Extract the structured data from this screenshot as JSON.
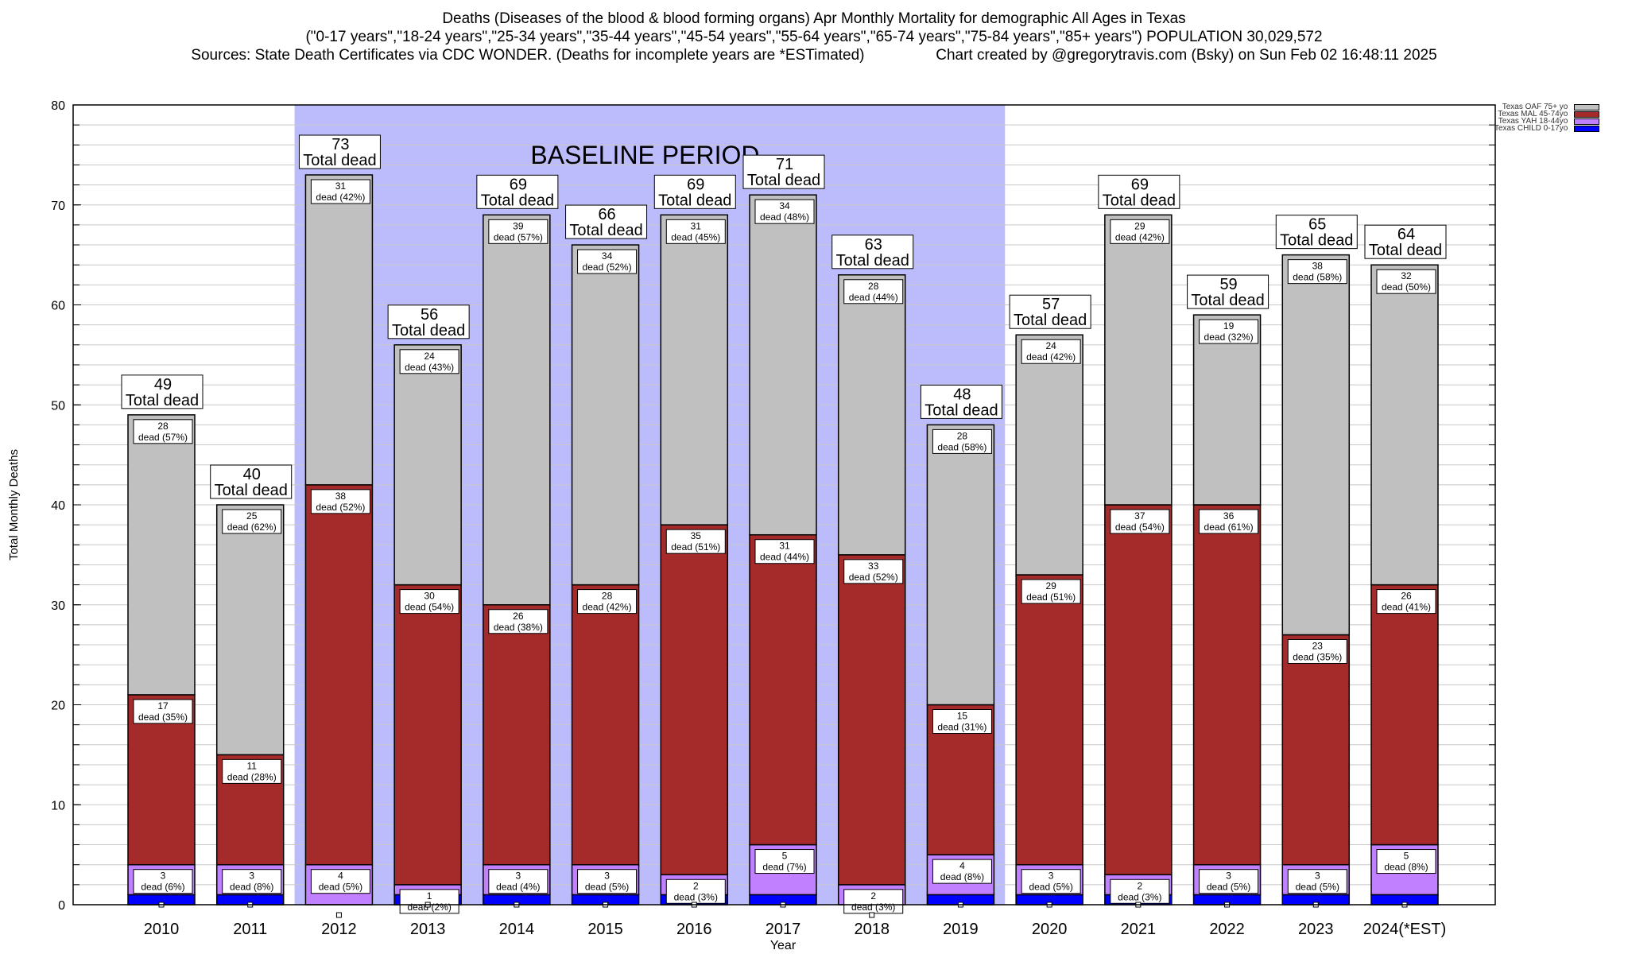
{
  "header": {
    "title_line1": "Deaths (Diseases of the blood & blood forming organs) Apr Monthly Mortality for demographic All Ages in Texas",
    "title_line2": "(\"0-17 years\",\"18-24 years\",\"25-34 years\",\"35-44 years\",\"45-54 years\",\"55-64 years\",\"65-74 years\",\"75-84 years\",\"85+ years\") POPULATION 30,029,572",
    "title_line3": "Sources: State Death Certificates via CDC WONDER. (Deaths for incomplete years are *ESTimated)                 Chart created by @gregorytravis.com (Bsky) on Sun Feb 02 16:48:11 2025"
  },
  "chart_data": {
    "type": "bar",
    "stacked": true,
    "title": "Deaths (Diseases of the blood & blood forming organs) Apr Monthly Mortality for demographic All Ages in Texas",
    "xlabel": "Year",
    "ylabel": "Total Monthly Deaths",
    "ylim": [
      0,
      80
    ],
    "yticks": [
      0,
      10,
      20,
      30,
      40,
      50,
      60,
      70,
      80
    ],
    "grid": true,
    "legend_position": "top-right",
    "baseline_period": {
      "label": "BASELINE PERIOD",
      "start": "2012",
      "end": "2019",
      "color": "#bcbcfc"
    },
    "categories": [
      "2010",
      "2011",
      "2012",
      "2013",
      "2014",
      "2015",
      "2016",
      "2017",
      "2018",
      "2019",
      "2020",
      "2021",
      "2022",
      "2023",
      "2024(*EST)"
    ],
    "totals": [
      49,
      40,
      73,
      56,
      69,
      66,
      69,
      71,
      63,
      48,
      57,
      69,
      59,
      65,
      64
    ],
    "total_label_suffix": "Total dead",
    "segment_label_word": "dead",
    "series": [
      {
        "name": "Texas CHILD 0-17yo",
        "color": "#0000ff",
        "values": [
          1,
          1,
          0,
          1,
          1,
          1,
          1,
          1,
          0,
          1,
          1,
          1,
          1,
          1,
          1
        ],
        "labels": false
      },
      {
        "name": "Texas YAH 18-44yo",
        "color": "#c080ff",
        "values": [
          3,
          3,
          4,
          1,
          3,
          3,
          2,
          5,
          2,
          4,
          3,
          2,
          3,
          3,
          5
        ],
        "percents": [
          "6%",
          "8%",
          "5%",
          "2%",
          "4%",
          "5%",
          "3%",
          "7%",
          "3%",
          "8%",
          "5%",
          "3%",
          "5%",
          "5%",
          "8%"
        ]
      },
      {
        "name": "Texas MAL 45-74yo",
        "color": "#a52a2a",
        "values": [
          17,
          11,
          38,
          30,
          26,
          28,
          35,
          31,
          33,
          15,
          29,
          37,
          36,
          23,
          26
        ],
        "percents": [
          "35%",
          "28%",
          "52%",
          "54%",
          "38%",
          "42%",
          "51%",
          "44%",
          "52%",
          "31%",
          "51%",
          "54%",
          "61%",
          "35%",
          "41%"
        ]
      },
      {
        "name": "Texas OAF 75+ yo",
        "color": "#c0c0c0",
        "values": [
          28,
          25,
          31,
          24,
          39,
          34,
          31,
          34,
          28,
          28,
          24,
          29,
          19,
          38,
          32
        ],
        "percents": [
          "57%",
          "62%",
          "42%",
          "43%",
          "57%",
          "52%",
          "45%",
          "48%",
          "44%",
          "58%",
          "42%",
          "42%",
          "32%",
          "58%",
          "50%"
        ]
      }
    ],
    "legend_order": [
      "Texas OAF 75+ yo",
      "Texas MAL 45-74yo",
      "Texas YAH 18-44yo",
      "Texas CHILD 0-17yo"
    ]
  }
}
